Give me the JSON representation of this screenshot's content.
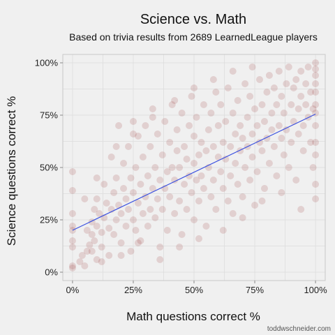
{
  "chart_data": {
    "type": "scatter",
    "title": "Science vs. Math",
    "subtitle": "Based on trivia results from 2689 LearnedLeague players",
    "xlabel": "Math questions correct %",
    "ylabel": "Science questions correct %",
    "xlim": [
      -0.04,
      1.04
    ],
    "ylim": [
      -0.04,
      1.04
    ],
    "x_ticks": [
      0,
      0.25,
      0.5,
      0.75,
      1.0
    ],
    "x_tick_labels": [
      "0%",
      "25%",
      "50%",
      "75%",
      "100%"
    ],
    "y_ticks": [
      0,
      0.25,
      0.5,
      0.75,
      1.0
    ],
    "y_tick_labels": [
      "0%",
      "25%",
      "50%",
      "75%",
      "100%"
    ],
    "grid": true,
    "point_color": "#8b1a1a",
    "point_opacity": 0.15,
    "n_points": 2689,
    "trend_line": {
      "x": [
        0,
        1
      ],
      "y": [
        0.2,
        0.755
      ],
      "color": "#3a50e0"
    },
    "points": [
      [
        0,
        0.02
      ],
      [
        0,
        0.03
      ],
      [
        0,
        0.12
      ],
      [
        0,
        0.15
      ],
      [
        0,
        0.2
      ],
      [
        0,
        0.22
      ],
      [
        0,
        0.28
      ],
      [
        0,
        0.39
      ],
      [
        0,
        0.48
      ],
      [
        0.03,
        0.05
      ],
      [
        0.04,
        0.08
      ],
      [
        0.05,
        0.03
      ],
      [
        0.06,
        0.1
      ],
      [
        0.06,
        0.2
      ],
      [
        0.07,
        0.13
      ],
      [
        0.08,
        0.18
      ],
      [
        0.08,
        0.24
      ],
      [
        0.09,
        0.3
      ],
      [
        0.09,
        0.15
      ],
      [
        0.1,
        0.06
      ],
      [
        0.1,
        0.22
      ],
      [
        0.1,
        0.35
      ],
      [
        0.11,
        0.28
      ],
      [
        0.12,
        0.12
      ],
      [
        0.12,
        0.19
      ],
      [
        0.13,
        0.42
      ],
      [
        0.13,
        0.26
      ],
      [
        0.14,
        0.33
      ],
      [
        0.15,
        0.08
      ],
      [
        0.15,
        0.21
      ],
      [
        0.16,
        0.55
      ],
      [
        0.16,
        0.3
      ],
      [
        0.17,
        0.38
      ],
      [
        0.17,
        0.18
      ],
      [
        0.18,
        0.25
      ],
      [
        0.18,
        0.45
      ],
      [
        0.19,
        0.32
      ],
      [
        0.19,
        0.7
      ],
      [
        0.2,
        0.14
      ],
      [
        0.2,
        0.28
      ],
      [
        0.21,
        0.4
      ],
      [
        0.21,
        0.52
      ],
      [
        0.22,
        0.22
      ],
      [
        0.22,
        0.35
      ],
      [
        0.23,
        0.6
      ],
      [
        0.23,
        0.3
      ],
      [
        0.24,
        0.1
      ],
      [
        0.24,
        0.45
      ],
      [
        0.25,
        0.25
      ],
      [
        0.25,
        0.38
      ],
      [
        0.25,
        0.72
      ],
      [
        0.26,
        0.5
      ],
      [
        0.26,
        0.2
      ],
      [
        0.27,
        0.33
      ],
      [
        0.27,
        0.65
      ],
      [
        0.28,
        0.42
      ],
      [
        0.28,
        0.15
      ],
      [
        0.29,
        0.28
      ],
      [
        0.29,
        0.55
      ],
      [
        0.3,
        0.36
      ],
      [
        0.3,
        0.7
      ],
      [
        0.31,
        0.46
      ],
      [
        0.31,
        0.22
      ],
      [
        0.32,
        0.3
      ],
      [
        0.32,
        0.6
      ],
      [
        0.33,
        0.4
      ],
      [
        0.33,
        0.78
      ],
      [
        0.34,
        0.5
      ],
      [
        0.34,
        0.26
      ],
      [
        0.35,
        0.35
      ],
      [
        0.35,
        0.66
      ],
      [
        0.36,
        0.44
      ],
      [
        0.36,
        0.12
      ],
      [
        0.37,
        0.56
      ],
      [
        0.37,
        0.3
      ],
      [
        0.38,
        0.4
      ],
      [
        0.38,
        0.72
      ],
      [
        0.39,
        0.48
      ],
      [
        0.39,
        0.2
      ],
      [
        0.4,
        0.36
      ],
      [
        0.4,
        0.62
      ],
      [
        0.41,
        0.5
      ],
      [
        0.41,
        0.8
      ],
      [
        0.42,
        0.28
      ],
      [
        0.42,
        0.44
      ],
      [
        0.43,
        0.58
      ],
      [
        0.43,
        0.68
      ],
      [
        0.44,
        0.34
      ],
      [
        0.44,
        0.5
      ],
      [
        0.45,
        0.76
      ],
      [
        0.45,
        0.18
      ],
      [
        0.46,
        0.42
      ],
      [
        0.46,
        0.6
      ],
      [
        0.47,
        0.54
      ],
      [
        0.47,
        0.3
      ],
      [
        0.48,
        0.7
      ],
      [
        0.48,
        0.46
      ],
      [
        0.49,
        0.38
      ],
      [
        0.49,
        0.84
      ],
      [
        0.5,
        0.52
      ],
      [
        0.5,
        0.25
      ],
      [
        0.5,
        0.65
      ],
      [
        0.51,
        0.44
      ],
      [
        0.51,
        0.74
      ],
      [
        0.52,
        0.56
      ],
      [
        0.52,
        0.34
      ],
      [
        0.53,
        0.62
      ],
      [
        0.53,
        0.46
      ],
      [
        0.54,
        0.8
      ],
      [
        0.54,
        0.4
      ],
      [
        0.55,
        0.58
      ],
      [
        0.55,
        0.22
      ],
      [
        0.56,
        0.68
      ],
      [
        0.56,
        0.5
      ],
      [
        0.57,
        0.36
      ],
      [
        0.57,
        0.76
      ],
      [
        0.58,
        0.6
      ],
      [
        0.58,
        0.44
      ],
      [
        0.59,
        0.86
      ],
      [
        0.59,
        0.3
      ],
      [
        0.6,
        0.55
      ],
      [
        0.6,
        0.7
      ],
      [
        0.61,
        0.48
      ],
      [
        0.61,
        0.8
      ],
      [
        0.62,
        0.62
      ],
      [
        0.62,
        0.4
      ],
      [
        0.63,
        0.72
      ],
      [
        0.63,
        0.54
      ],
      [
        0.64,
        0.34
      ],
      [
        0.64,
        0.88
      ],
      [
        0.65,
        0.6
      ],
      [
        0.65,
        0.46
      ],
      [
        0.66,
        0.76
      ],
      [
        0.66,
        0.28
      ],
      [
        0.67,
        0.66
      ],
      [
        0.67,
        0.52
      ],
      [
        0.68,
        0.82
      ],
      [
        0.68,
        0.42
      ],
      [
        0.69,
        0.58
      ],
      [
        0.69,
        0.7
      ],
      [
        0.7,
        0.64
      ],
      [
        0.7,
        0.36
      ],
      [
        0.71,
        0.9
      ],
      [
        0.71,
        0.5
      ],
      [
        0.72,
        0.74
      ],
      [
        0.72,
        0.6
      ],
      [
        0.73,
        0.44
      ],
      [
        0.73,
        0.84
      ],
      [
        0.74,
        0.66
      ],
      [
        0.74,
        0.55
      ],
      [
        0.75,
        0.78
      ],
      [
        0.75,
        0.32
      ],
      [
        0.76,
        0.7
      ],
      [
        0.76,
        0.48
      ],
      [
        0.77,
        0.92
      ],
      [
        0.77,
        0.62
      ],
      [
        0.78,
        0.58
      ],
      [
        0.78,
        0.8
      ],
      [
        0.79,
        0.4
      ],
      [
        0.79,
        0.72
      ],
      [
        0.8,
        0.86
      ],
      [
        0.8,
        0.64
      ],
      [
        0.81,
        0.52
      ],
      [
        0.81,
        0.94
      ],
      [
        0.82,
        0.76
      ],
      [
        0.82,
        0.68
      ],
      [
        0.83,
        0.6
      ],
      [
        0.83,
        0.88
      ],
      [
        0.84,
        0.46
      ],
      [
        0.84,
        0.8
      ],
      [
        0.85,
        0.7
      ],
      [
        0.85,
        0.96
      ],
      [
        0.86,
        0.64
      ],
      [
        0.86,
        0.84
      ],
      [
        0.87,
        0.56
      ],
      [
        0.87,
        0.76
      ],
      [
        0.88,
        0.9
      ],
      [
        0.88,
        0.68
      ],
      [
        0.89,
        0.98
      ],
      [
        0.89,
        0.5
      ],
      [
        0.9,
        0.8
      ],
      [
        0.9,
        0.62
      ],
      [
        0.91,
        0.88
      ],
      [
        0.91,
        0.72
      ],
      [
        0.92,
        0.92
      ],
      [
        0.92,
        0.44
      ],
      [
        0.93,
        0.78
      ],
      [
        0.93,
        0.66
      ],
      [
        0.94,
        0.96
      ],
      [
        0.94,
        0.84
      ],
      [
        0.95,
        0.7
      ],
      [
        0.95,
        0.58
      ],
      [
        0.96,
        0.9
      ],
      [
        0.96,
        0.8
      ],
      [
        0.97,
        0.74
      ],
      [
        0.97,
        0.98
      ],
      [
        0.98,
        0.62
      ],
      [
        0.98,
        0.86
      ],
      [
        0.99,
        0.5
      ],
      [
        0.99,
        0.78
      ],
      [
        1,
        0.35
      ],
      [
        1,
        0.42
      ],
      [
        1,
        0.56
      ],
      [
        1,
        0.62
      ],
      [
        1,
        0.7
      ],
      [
        1,
        0.76
      ],
      [
        1,
        0.8
      ],
      [
        1,
        0.86
      ],
      [
        1,
        0.9
      ],
      [
        1,
        0.94
      ],
      [
        1,
        0.97
      ],
      [
        1,
        1.0
      ],
      [
        0.08,
        0.1
      ],
      [
        0.12,
        0.05
      ],
      [
        0.2,
        0.08
      ],
      [
        0.27,
        0.14
      ],
      [
        0.36,
        0.06
      ],
      [
        0.44,
        0.12
      ],
      [
        0.52,
        0.16
      ],
      [
        0.62,
        0.2
      ],
      [
        0.7,
        0.26
      ],
      [
        0.78,
        0.34
      ],
      [
        0.86,
        0.38
      ],
      [
        0.94,
        0.3
      ],
      [
        0.05,
        0.35
      ],
      [
        0.1,
        0.45
      ],
      [
        0.18,
        0.6
      ],
      [
        0.25,
        0.66
      ],
      [
        0.33,
        0.74
      ],
      [
        0.42,
        0.82
      ],
      [
        0.5,
        0.88
      ],
      [
        0.58,
        0.92
      ],
      [
        0.66,
        0.96
      ],
      [
        0.74,
        0.98
      ]
    ]
  },
  "credit": "toddwschneider.com"
}
